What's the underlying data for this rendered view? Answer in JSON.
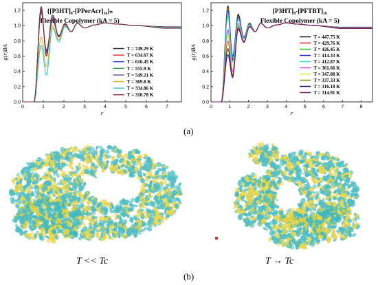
{
  "chart_data": [
    {
      "type": "line",
      "title": "{[P3HT]₈-[PPerAcr]₁₆}ₙ",
      "subtitle": "Flexible Copolymer (kA = 5)",
      "xlabel": "r",
      "ylabel": "g(r)BA",
      "xlim": [
        0,
        7.7
      ],
      "ylim": [
        0,
        1.3
      ],
      "xticks": [
        0,
        1,
        2,
        3,
        4,
        5,
        6,
        7
      ],
      "yticks": [
        0.0,
        0.2,
        0.4,
        0.6,
        0.8,
        1.0,
        1.2
      ],
      "legend_position": "right",
      "series": [
        {
          "name": "T = 749.29 K",
          "color": "#333333",
          "peak1": 1.17,
          "min1": 0.68,
          "peak2": 1.07,
          "tail": 0.985
        },
        {
          "name": "T = 634.67 K",
          "color": "#e8251f",
          "peak1": 1.18,
          "min1": 0.67,
          "peak2": 1.08,
          "tail": 0.983
        },
        {
          "name": "T = 616.45 K",
          "color": "#1f3bd0",
          "peak1": 1.2,
          "min1": 0.66,
          "peak2": 1.09,
          "tail": 0.981
        },
        {
          "name": "T = 555.9 K",
          "color": "#2e9e3b",
          "peak1": 1.22,
          "min1": 0.64,
          "peak2": 1.11,
          "tail": 0.978
        },
        {
          "name": "T = 549.21 K",
          "color": "#7a3fa0",
          "peak1": 1.23,
          "min1": 0.63,
          "peak2": 1.12,
          "tail": 0.976
        },
        {
          "name": "T = 369.8 K",
          "color": "#e0b020",
          "peak1": 0.85,
          "min1": 0.46,
          "peak2": 1.0,
          "tail": 0.975
        },
        {
          "name": "T = 334.86 K",
          "color": "#2ec9c9",
          "peak1": 0.74,
          "min1": 0.35,
          "peak2": 0.97,
          "tail": 0.972
        },
        {
          "name": "T = 310.78 K",
          "color": "#7a2b3a",
          "peak1": 1.25,
          "min1": 0.6,
          "peak2": 1.14,
          "tail": 0.965
        }
      ]
    },
    {
      "type": "line",
      "title": "[P3HT]₈-[PFTBT]₁₆",
      "subtitle": "Flexible Copolymer (kA = 5)",
      "xlabel": "r",
      "ylabel": "g(r)BA",
      "xlim": [
        0,
        8.6
      ],
      "ylim": [
        0,
        1.3
      ],
      "xticks": [
        0,
        1,
        2,
        3,
        4,
        5,
        6,
        7,
        8
      ],
      "yticks": [
        0.0,
        0.2,
        0.4,
        0.6,
        0.8,
        1.0,
        1.2
      ],
      "legend_position": "right",
      "series": [
        {
          "name": "T = 447.75 K",
          "color": "#111111",
          "peak1": 1.26,
          "min1": 0.55,
          "peak2": 1.15,
          "tail": 0.98
        },
        {
          "name": "T = 429.76 K",
          "color": "#e8251f",
          "peak1": 1.24,
          "min1": 0.57,
          "peak2": 1.13,
          "tail": 0.978
        },
        {
          "name": "T = 426.45 K",
          "color": "#1ec41e",
          "peak1": 1.22,
          "min1": 0.58,
          "peak2": 1.12,
          "tail": 0.976
        },
        {
          "name": "T = 414.33 K",
          "color": "#1f2bd8",
          "peak1": 1.2,
          "min1": 0.6,
          "peak2": 1.11,
          "tail": 0.974
        },
        {
          "name": "T = 412.87 K",
          "color": "#27d8e0",
          "peak1": 1.13,
          "min1": 0.52,
          "peak2": 1.08,
          "tail": 0.972
        },
        {
          "name": "T = 361.66 K",
          "color": "#e040e0",
          "peak1": 0.95,
          "min1": 0.4,
          "peak2": 1.03,
          "tail": 0.97
        },
        {
          "name": "T = 347.88 K",
          "color": "#e6e020",
          "peak1": 0.88,
          "min1": 0.37,
          "peak2": 1.01,
          "tail": 0.968
        },
        {
          "name": "T = 337.33 K",
          "color": "#8a8a1a",
          "peak1": 0.8,
          "min1": 0.35,
          "peak2": 0.99,
          "tail": 0.966
        },
        {
          "name": "T = 316.18 K",
          "color": "#1a1a7a",
          "peak1": 0.62,
          "min1": 0.32,
          "peak2": 0.95,
          "tail": 0.964
        },
        {
          "name": "T = 314.91 K",
          "color": "#7a1a6a",
          "peak1": 0.7,
          "min1": 0.34,
          "peak2": 0.97,
          "tail": 0.962
        }
      ]
    }
  ],
  "captions": {
    "a": "(a)",
    "b": "(b)"
  },
  "snapshots": {
    "low": {
      "label": "T << Tc",
      "colors": [
        "#3fb8bf",
        "#e8d23a"
      ]
    },
    "high": {
      "label": "T → Tc",
      "colors": [
        "#3fb8bf",
        "#e8d23a"
      ]
    }
  }
}
